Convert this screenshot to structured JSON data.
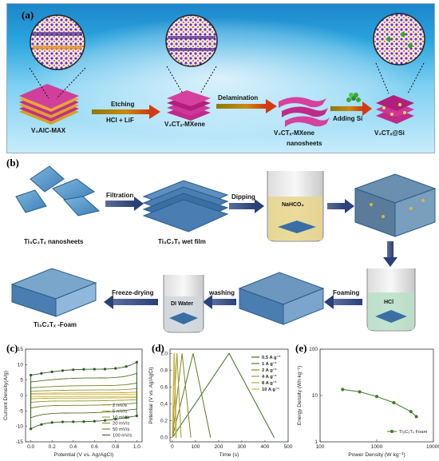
{
  "panel_a": {
    "label": "(a)",
    "materials": [
      "V₂AlC-MAX",
      "V₂CTₓ-MXene",
      "V₂CTₓ-MXene",
      "nanosheets",
      "V₂CTₓ@Si"
    ],
    "arrows": [
      {
        "top": "Etching",
        "bottom": "HCl + LiF"
      },
      {
        "top": "Delamination",
        "bottom": ""
      },
      {
        "top": "Adding Si",
        "bottom": ""
      }
    ]
  },
  "panel_b": {
    "label": "(b)",
    "items": {
      "nanosheets": "Ti₃C₂Tₓ nanosheets",
      "wetfilm": "Ti₃C₂Tₓ wet film",
      "foam": "Ti₃C₂Tₓ -Foam"
    },
    "steps": [
      "Filtration",
      "Dipping",
      "Foaming",
      "washing",
      "Freeze-drying"
    ],
    "beakers": [
      "NaHCO₃",
      "HCl",
      "DI Water"
    ]
  },
  "colors": {
    "cv_dark": "#2e5a1e",
    "cv_mid": "#7a9a2a",
    "cv_light": "#d9b83a",
    "gcd_dark": "#3d6b1f",
    "pd_line": "#3a7a24"
  },
  "chart_data": [
    {
      "type": "line",
      "panel": "(c)",
      "xlabel": "Potential (V vs. Ag/AgCl)",
      "ylabel": "Current Density(A/g)",
      "xlim": [
        -0.05,
        1.05
      ],
      "ylim": [
        -15,
        15
      ],
      "xticks": [
        "0.0",
        "0.2",
        "0.4",
        "0.6",
        "0.8",
        "1.0"
      ],
      "yticks": [
        "-15",
        "-10",
        "-5",
        "0",
        "5",
        "10",
        "15"
      ],
      "legend_position": "bottom-right",
      "series": [
        {
          "name": "2 mV/s",
          "amplitude": 0.5
        },
        {
          "name": "5 mV/s",
          "amplitude": 1.2
        },
        {
          "name": "10 mV/s",
          "amplitude": 2.5
        },
        {
          "name": "20 mV/s",
          "amplitude": 4.5
        },
        {
          "name": "50 mV/s",
          "amplitude": 8
        },
        {
          "name": "100 mV/s",
          "amplitude": 12
        }
      ]
    },
    {
      "type": "line",
      "panel": "(d)",
      "xlabel": "Time (s)",
      "ylabel": "Potential (V vs. Ag/AgCl)",
      "xlim": [
        -10,
        500
      ],
      "ylim": [
        -0.05,
        1.05
      ],
      "xticks": [
        "0",
        "100",
        "200",
        "300",
        "400",
        "500"
      ],
      "yticks": [
        "0.0",
        "0.2",
        "0.4",
        "0.6",
        "0.8",
        "1.0"
      ],
      "legend_position": "top-right",
      "series": [
        {
          "name": "0.5 A g⁻¹",
          "charge": 245,
          "total": 440
        },
        {
          "name": "1 A g⁻¹",
          "charge": 90,
          "total": 165
        },
        {
          "name": "2 A g⁻¹",
          "charge": 42,
          "total": 80
        },
        {
          "name": "4 A g⁻¹",
          "charge": 20,
          "total": 38
        },
        {
          "name": "8 A g⁻¹",
          "charge": 9,
          "total": 18
        },
        {
          "name": "10 A g⁻¹",
          "charge": 7,
          "total": 14
        }
      ]
    },
    {
      "type": "line",
      "panel": "(e)",
      "xlabel": "Power Density (W kg⁻¹)",
      "ylabel": "Energy Density (Wh kg⁻¹)",
      "xscale": "log",
      "yscale": "log",
      "xlim": [
        100,
        10000
      ],
      "ylim": [
        1,
        100
      ],
      "xticks": [
        "100",
        "1000",
        "10000"
      ],
      "yticks": [
        "1",
        "10",
        "100"
      ],
      "legend_position": "bottom-right",
      "series": [
        {
          "name": "Ti₃C₂Tₓ Foam",
          "x": [
            250,
            500,
            1000,
            2000,
            4000,
            5000
          ],
          "y": [
            13.5,
            12,
            9.5,
            7,
            4.5,
            3.5
          ]
        }
      ]
    }
  ]
}
